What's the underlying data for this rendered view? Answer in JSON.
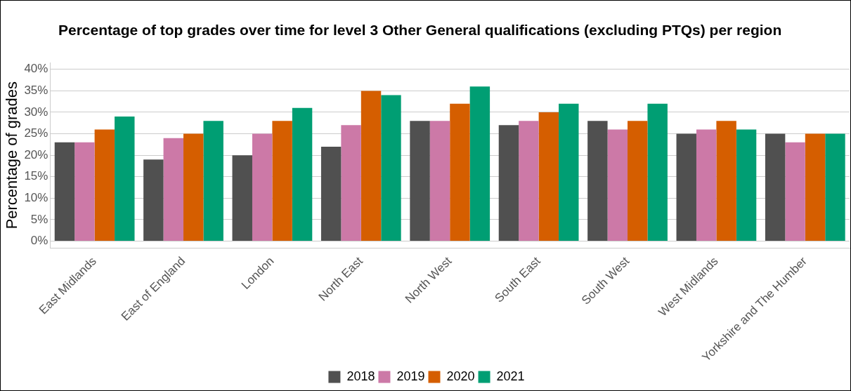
{
  "chart_data": {
    "type": "bar",
    "title": "Percentage of top grades over time for level 3 Other General qualifications (excluding PTQs) per region",
    "ylabel": "Percentage of grades",
    "categories": [
      "East Midlands",
      "East of England",
      "London",
      "North East",
      "North West",
      "South East",
      "South West",
      "West Midlands",
      "Yorkshire and The Humber"
    ],
    "series": [
      {
        "name": "2018",
        "color": "#505050",
        "values": [
          23,
          19,
          20,
          22,
          28,
          27,
          28,
          25,
          25
        ]
      },
      {
        "name": "2019",
        "color": "#cc79a7",
        "values": [
          23,
          24,
          25,
          27,
          28,
          28,
          26,
          26,
          23
        ]
      },
      {
        "name": "2020",
        "color": "#d55e00",
        "values": [
          26,
          25,
          28,
          35,
          32,
          30,
          28,
          28,
          25
        ]
      },
      {
        "name": "2021",
        "color": "#009e73",
        "values": [
          29,
          28,
          31,
          34,
          36,
          32,
          32,
          26,
          25
        ]
      }
    ],
    "ylim": [
      -1.6,
      41.6
    ],
    "yticks": [
      {
        "value": 0,
        "label": "0%"
      },
      {
        "value": 5,
        "label": "5%"
      },
      {
        "value": 10,
        "label": "10%"
      },
      {
        "value": 15,
        "label": "15%"
      },
      {
        "value": 20,
        "label": "20%"
      },
      {
        "value": 25,
        "label": "25%"
      },
      {
        "value": 30,
        "label": "30%"
      },
      {
        "value": 35,
        "label": "35%"
      },
      {
        "value": 40,
        "label": "40%"
      }
    ],
    "grid": "y",
    "legend": "bottom"
  }
}
